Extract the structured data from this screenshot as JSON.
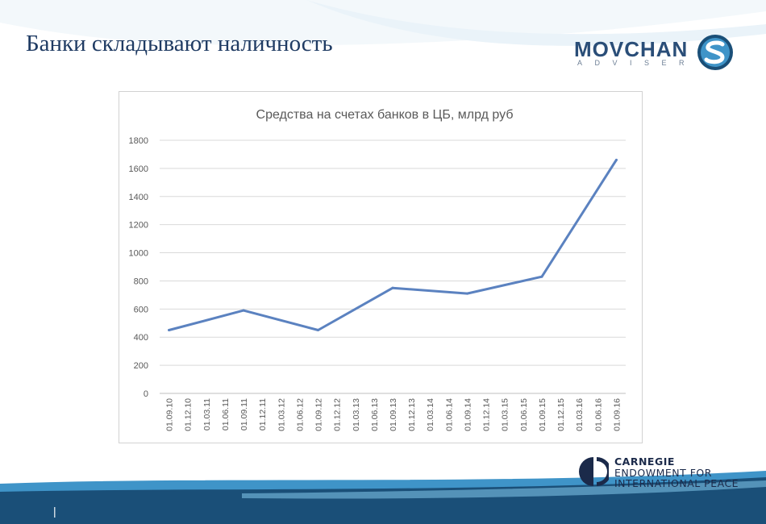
{
  "slide": {
    "title": "Банки складывают наличность",
    "footer_marker": "|"
  },
  "logos": {
    "movchan": {
      "name": "MOVCHAN",
      "sub": "ADVISER",
      "icon": "movchans-s-icon"
    },
    "carnegie": {
      "line1": "CARNEGIE",
      "line2": "ENDOWMENT FOR",
      "line3": "INTERNATIONAL PEACE",
      "icon": "carnegie-c-icon"
    }
  },
  "colors": {
    "title": "#1f3b63",
    "line": "#5b82c0",
    "grid": "#d9d9d9",
    "brand_dark": "#1a4f78",
    "brand_light": "#3f94c8"
  },
  "chart_data": {
    "type": "line",
    "title": "Средства на счетах банков в ЦБ, млрд руб",
    "xlabel": "",
    "ylabel": "",
    "ylim": [
      0,
      1800
    ],
    "yticks": [
      0,
      200,
      400,
      600,
      800,
      1000,
      1200,
      1400,
      1600,
      1800
    ],
    "grid": true,
    "legend": "none",
    "categories": [
      "01.09.10",
      "01.12.10",
      "01.03.11",
      "01.06.11",
      "01.09.11",
      "01.12.11",
      "01.03.12",
      "01.06.12",
      "01.09.12",
      "01.12.12",
      "01.03.13",
      "01.06.13",
      "01.09.13",
      "01.12.13",
      "01.03.14",
      "01.06.14",
      "01.09.14",
      "01.12.14",
      "01.03.15",
      "01.06.15",
      "01.09.15",
      "01.12.15",
      "01.03.16",
      "01.06.16",
      "01.09.16"
    ],
    "series": [
      {
        "values": [
          450,
          null,
          null,
          null,
          590,
          null,
          null,
          null,
          450,
          null,
          null,
          null,
          750,
          null,
          null,
          null,
          710,
          null,
          null,
          null,
          830,
          null,
          null,
          null,
          1660
        ]
      }
    ]
  }
}
